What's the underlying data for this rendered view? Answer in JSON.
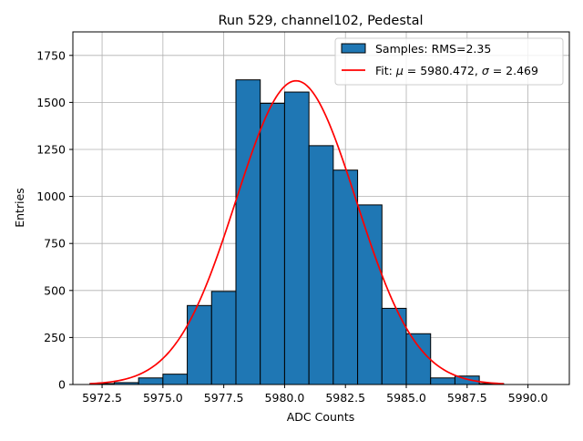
{
  "chart_data": {
    "type": "bar",
    "title": "Run 529, channel102, Pedestal",
    "xlabel": "ADC Counts",
    "ylabel": "Entries",
    "xlim": [
      5971.3,
      5991.7
    ],
    "ylim": [
      0,
      1875
    ],
    "grid": true,
    "legend_position": "top-right",
    "x_ticks": [
      5972.5,
      5975.0,
      5977.5,
      5980.0,
      5982.5,
      5985.0,
      5987.5,
      5990.0
    ],
    "x_tick_labels": [
      "5972.5",
      "5975.0",
      "5977.5",
      "5980.0",
      "5982.5",
      "5985.0",
      "5987.5",
      "5990.0"
    ],
    "y_ticks": [
      0,
      250,
      500,
      750,
      1000,
      1250,
      1500,
      1750
    ],
    "y_tick_labels": [
      "0",
      "250",
      "500",
      "750",
      "1000",
      "1250",
      "1500",
      "1750"
    ],
    "histogram": {
      "name": "Samples: RMS=2.35",
      "color": "#1f77b4",
      "edge_color": "#000000",
      "bins": [
        {
          "x0": 5972.0,
          "x1": 5973.0,
          "count": 5
        },
        {
          "x0": 5973.0,
          "x1": 5974.0,
          "count": 10
        },
        {
          "x0": 5974.0,
          "x1": 5975.0,
          "count": 35
        },
        {
          "x0": 5975.0,
          "x1": 5976.0,
          "count": 55
        },
        {
          "x0": 5976.0,
          "x1": 5977.0,
          "count": 420
        },
        {
          "x0": 5977.0,
          "x1": 5978.0,
          "count": 495
        },
        {
          "x0": 5978.0,
          "x1": 5979.0,
          "count": 1620
        },
        {
          "x0": 5979.0,
          "x1": 5980.0,
          "count": 1495
        },
        {
          "x0": 5980.0,
          "x1": 5981.0,
          "count": 1555
        },
        {
          "x0": 5981.0,
          "x1": 5982.0,
          "count": 1270
        },
        {
          "x0": 5982.0,
          "x1": 5983.0,
          "count": 1140
        },
        {
          "x0": 5983.0,
          "x1": 5984.0,
          "count": 955
        },
        {
          "x0": 5984.0,
          "x1": 5985.0,
          "count": 405
        },
        {
          "x0": 5985.0,
          "x1": 5986.0,
          "count": 270
        },
        {
          "x0": 5986.0,
          "x1": 5987.0,
          "count": 35
        },
        {
          "x0": 5987.0,
          "x1": 5988.0,
          "count": 45
        },
        {
          "x0": 5988.0,
          "x1": 5989.0,
          "count": 5
        }
      ]
    },
    "fit": {
      "name": "Fit: μ = 5980.472, σ = 2.469",
      "label_prefix": "Fit: ",
      "mu_symbol": "μ",
      "sigma_symbol": "σ",
      "mu_text": " = 5980.472, ",
      "sigma_text": " = 2.469",
      "type": "gaussian",
      "mu": 5980.472,
      "sigma": 2.469,
      "amplitude": 1615,
      "x_range": [
        5972.0,
        5989.0
      ],
      "color": "#ff0000"
    }
  }
}
